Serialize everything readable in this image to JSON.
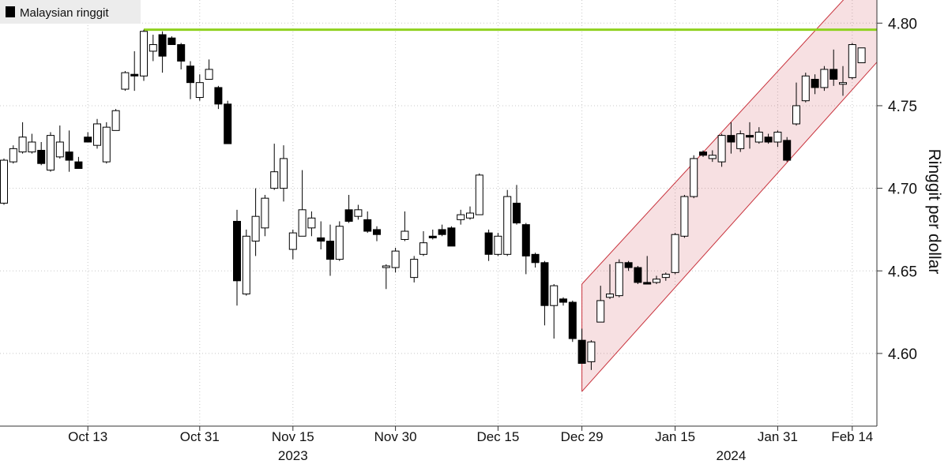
{
  "chart_data": {
    "type": "candlestick",
    "legend": "Malaysian ringgit",
    "y_label": "Ringgit per dollar",
    "up_color": "#ffffff",
    "down_color": "#000000",
    "x": [
      "2023-10-02",
      "2023-10-03",
      "2023-10-04",
      "2023-10-05",
      "2023-10-06",
      "2023-10-09",
      "2023-10-10",
      "2023-10-11",
      "2023-10-12",
      "2023-10-13",
      "2023-10-16",
      "2023-10-17",
      "2023-10-18",
      "2023-10-19",
      "2023-10-20",
      "2023-10-23",
      "2023-10-24",
      "2023-10-25",
      "2023-10-26",
      "2023-10-27",
      "2023-10-30",
      "2023-10-31",
      "2023-11-01",
      "2023-11-02",
      "2023-11-03",
      "2023-11-06",
      "2023-11-07",
      "2023-11-08",
      "2023-11-09",
      "2023-11-10",
      "2023-11-14",
      "2023-11-15",
      "2023-11-16",
      "2023-11-17",
      "2023-11-20",
      "2023-11-21",
      "2023-11-22",
      "2023-11-23",
      "2023-11-24",
      "2023-11-27",
      "2023-11-28",
      "2023-11-29",
      "2023-11-30",
      "2023-12-01",
      "2023-12-04",
      "2023-12-05",
      "2023-12-06",
      "2023-12-07",
      "2023-12-08",
      "2023-12-11",
      "2023-12-12",
      "2023-12-13",
      "2023-12-14",
      "2023-12-15",
      "2023-12-18",
      "2023-12-19",
      "2023-12-20",
      "2023-12-21",
      "2023-12-22",
      "2023-12-26",
      "2023-12-27",
      "2023-12-28",
      "2023-12-29",
      "2024-01-02",
      "2024-01-03",
      "2024-01-04",
      "2024-01-05",
      "2024-01-08",
      "2024-01-09",
      "2024-01-10",
      "2024-01-11",
      "2024-01-12",
      "2024-01-15",
      "2024-01-16",
      "2024-01-17",
      "2024-01-18",
      "2024-01-19",
      "2024-01-22",
      "2024-01-23",
      "2024-01-24",
      "2024-01-26",
      "2024-01-29",
      "2024-01-30",
      "2024-01-31",
      "2024-02-02",
      "2024-02-05",
      "2024-02-06",
      "2024-02-07",
      "2024-02-08",
      "2024-02-09",
      "2024-02-13",
      "2024-02-14",
      "2024-02-15"
    ],
    "open": [
      4.691,
      4.716,
      4.722,
      4.722,
      4.723,
      4.711,
      4.719,
      4.722,
      4.716,
      4.731,
      4.726,
      4.716,
      4.735,
      4.76,
      4.769,
      4.768,
      4.783,
      4.793,
      4.791,
      4.787,
      4.774,
      4.755,
      4.766,
      4.761,
      4.751,
      4.68,
      4.636,
      4.668,
      4.676,
      4.7,
      4.7,
      4.663,
      4.671,
      4.676,
      4.67,
      4.668,
      4.657,
      4.687,
      4.683,
      4.681,
      4.675,
      4.652,
      4.652,
      4.669,
      4.646,
      4.66,
      4.671,
      4.675,
      4.676,
      4.681,
      4.682,
      4.684,
      4.673,
      4.66,
      4.66,
      4.691,
      4.678,
      4.66,
      4.655,
      4.629,
      4.633,
      4.631,
      4.608,
      4.595,
      4.619,
      4.634,
      4.635,
      4.655,
      4.652,
      4.643,
      4.643,
      4.646,
      4.649,
      4.671,
      4.695,
      4.722,
      4.718,
      4.716,
      4.732,
      4.724,
      4.732,
      4.728,
      4.731,
      4.728,
      4.729,
      4.739,
      4.753,
      4.766,
      4.761,
      4.772,
      4.763,
      4.767,
      4.776
    ],
    "high": [
      4.718,
      4.726,
      4.74,
      4.733,
      4.728,
      4.734,
      4.738,
      4.735,
      4.719,
      4.734,
      4.742,
      4.74,
      4.748,
      4.771,
      4.783,
      4.796,
      4.793,
      4.795,
      4.792,
      4.788,
      4.777,
      4.769,
      4.778,
      4.762,
      4.753,
      4.687,
      4.675,
      4.7,
      4.696,
      4.727,
      4.726,
      4.675,
      4.711,
      4.686,
      4.68,
      4.678,
      4.68,
      4.696,
      4.69,
      4.686,
      4.677,
      4.654,
      4.664,
      4.686,
      4.659,
      4.674,
      4.675,
      4.678,
      4.677,
      4.687,
      4.689,
      4.709,
      4.675,
      4.673,
      4.699,
      4.702,
      4.679,
      4.661,
      4.656,
      4.642,
      4.634,
      4.632,
      4.615,
      4.608,
      4.641,
      4.654,
      4.657,
      4.656,
      4.653,
      4.659,
      4.647,
      4.649,
      4.673,
      4.696,
      4.72,
      4.723,
      4.723,
      4.733,
      4.74,
      4.735,
      4.74,
      4.737,
      4.733,
      4.735,
      4.731,
      4.764,
      4.77,
      4.769,
      4.774,
      4.784,
      4.774,
      4.788,
      4.785
    ],
    "low": [
      4.69,
      4.715,
      4.721,
      4.721,
      4.714,
      4.71,
      4.718,
      4.71,
      4.712,
      4.728,
      4.724,
      4.715,
      4.735,
      4.759,
      4.759,
      4.765,
      4.777,
      4.77,
      4.787,
      4.772,
      4.754,
      4.753,
      4.766,
      4.748,
      4.727,
      4.629,
      4.635,
      4.659,
      4.671,
      4.699,
      4.692,
      4.657,
      4.671,
      4.671,
      4.663,
      4.647,
      4.656,
      4.679,
      4.681,
      4.673,
      4.668,
      4.639,
      4.649,
      4.668,
      4.643,
      4.659,
      4.669,
      4.671,
      4.665,
      4.678,
      4.681,
      4.684,
      4.656,
      4.659,
      4.659,
      4.678,
      4.648,
      4.652,
      4.617,
      4.609,
      4.629,
      4.607,
      4.594,
      4.59,
      4.619,
      4.633,
      4.634,
      4.65,
      4.642,
      4.642,
      4.642,
      4.644,
      4.648,
      4.67,
      4.694,
      4.719,
      4.716,
      4.713,
      4.721,
      4.722,
      4.724,
      4.727,
      4.727,
      4.725,
      4.716,
      4.738,
      4.752,
      4.757,
      4.759,
      4.762,
      4.756,
      4.766,
      4.776
    ],
    "close": [
      4.717,
      4.724,
      4.731,
      4.728,
      4.715,
      4.732,
      4.728,
      4.717,
      4.712,
      4.728,
      4.739,
      4.737,
      4.747,
      4.77,
      4.768,
      4.795,
      4.787,
      4.78,
      4.787,
      4.777,
      4.764,
      4.764,
      4.772,
      4.751,
      4.727,
      4.644,
      4.671,
      4.683,
      4.694,
      4.71,
      4.718,
      4.673,
      4.687,
      4.682,
      4.668,
      4.657,
      4.677,
      4.68,
      4.687,
      4.674,
      4.672,
      4.653,
      4.662,
      4.674,
      4.657,
      4.667,
      4.67,
      4.672,
      4.665,
      4.684,
      4.685,
      4.708,
      4.66,
      4.671,
      4.695,
      4.679,
      4.659,
      4.655,
      4.629,
      4.641,
      4.631,
      4.609,
      4.594,
      4.607,
      4.632,
      4.636,
      4.655,
      4.652,
      4.643,
      4.642,
      4.645,
      4.648,
      4.672,
      4.695,
      4.718,
      4.72,
      4.72,
      4.732,
      4.728,
      4.733,
      4.731,
      4.734,
      4.728,
      4.734,
      4.717,
      4.75,
      4.768,
      4.761,
      4.772,
      4.766,
      4.764,
      4.787,
      4.785
    ],
    "ylim": [
      4.556,
      4.814
    ],
    "yticks": [
      {
        "value": 4.6,
        "label": "4.60"
      },
      {
        "value": 4.65,
        "label": "4.65"
      },
      {
        "value": 4.7,
        "label": "4.70"
      },
      {
        "value": 4.75,
        "label": "4.75"
      },
      {
        "value": 4.8,
        "label": "4.80"
      }
    ],
    "xticks": [
      {
        "value": "2023-10-13",
        "label": "Oct 13"
      },
      {
        "value": "2023-10-31",
        "label": "Oct 31"
      },
      {
        "value": "2023-11-15",
        "label": "Nov 15"
      },
      {
        "value": "2023-11-30",
        "label": "Nov 30"
      },
      {
        "value": "2023-12-15",
        "label": "Dec 15"
      },
      {
        "value": "2023-12-29",
        "label": "Dec 29"
      },
      {
        "value": "2024-01-15",
        "label": "Jan 15"
      },
      {
        "value": "2024-01-31",
        "label": "Jan 31"
      },
      {
        "value": "2024-02-14",
        "label": "Feb 14"
      }
    ],
    "year_labels": [
      {
        "text": "2023",
        "x": "2023-11-15"
      },
      {
        "text": "2024",
        "x": "2024-01-23"
      }
    ],
    "grid": true,
    "hline": {
      "value": 4.796,
      "start": "2023-10-23",
      "color": "#8fd11f"
    },
    "channel": {
      "x": [
        "2023-12-29",
        "2024-02-15"
      ],
      "upper": [
        4.642,
        4.826
      ],
      "lower": [
        4.577,
        4.766
      ],
      "color": "#c8323c"
    }
  }
}
